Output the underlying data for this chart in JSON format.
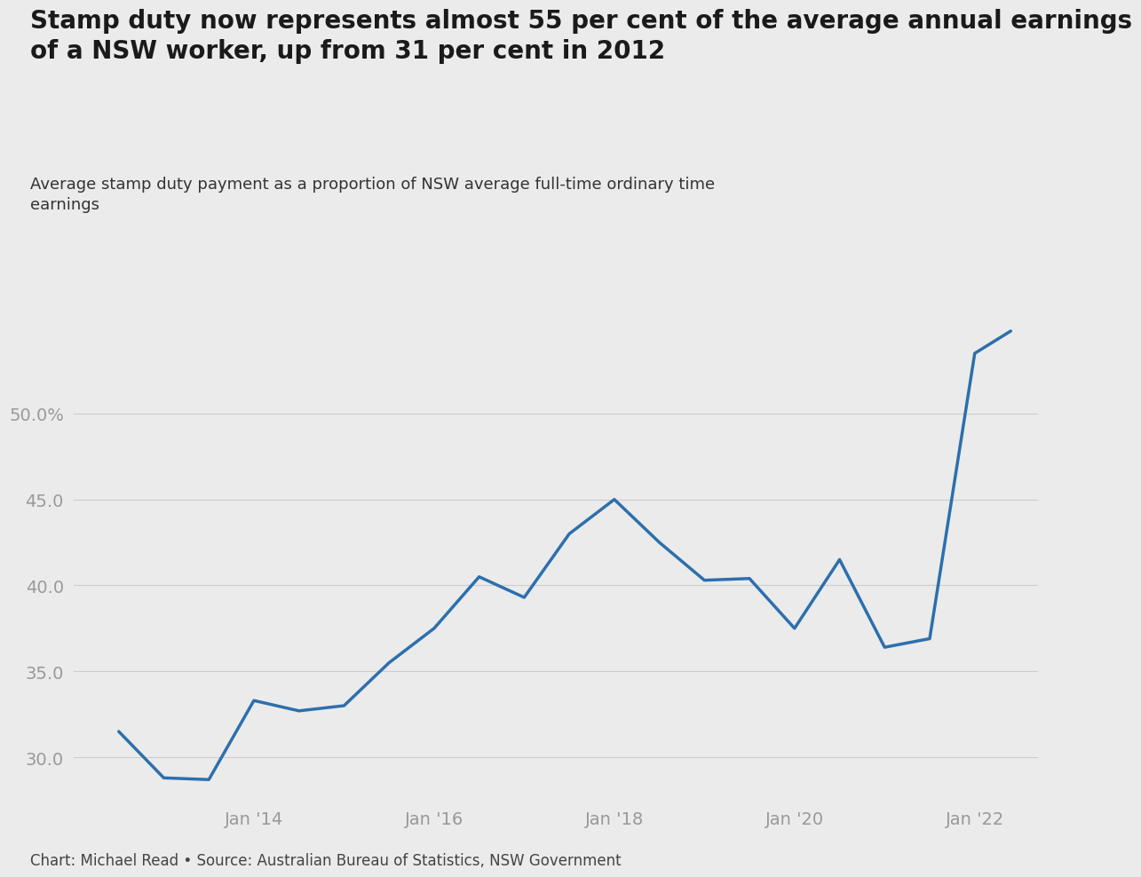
{
  "title": "Stamp duty now represents almost 55 per cent of the average annual earnings\nof a NSW worker, up from 31 per cent in 2012",
  "subtitle": "Average stamp duty payment as a proportion of NSW average full-time ordinary time\nearnings",
  "footer": "Chart: Michael Read • Source: Australian Bureau of Statistics, NSW Government",
  "line_color": "#2c6fad",
  "background_color": "#ebebeb",
  "x_data": [
    2012.5,
    2013.0,
    2013.5,
    2014.0,
    2014.5,
    2015.0,
    2015.5,
    2016.0,
    2016.5,
    2017.0,
    2017.5,
    2018.0,
    2018.5,
    2019.0,
    2019.5,
    2020.0,
    2020.5,
    2021.0,
    2021.5,
    2022.0,
    2022.4
  ],
  "y_data": [
    31.5,
    28.8,
    28.7,
    33.3,
    32.7,
    33.0,
    35.5,
    37.5,
    40.5,
    39.3,
    43.0,
    45.0,
    42.5,
    40.3,
    40.4,
    37.5,
    41.5,
    36.4,
    36.9,
    53.5,
    54.8
  ],
  "yticks": [
    30.0,
    35.0,
    40.0,
    45.0,
    50.0
  ],
  "ytick_labels": [
    "30.0",
    "35.0",
    "40.0",
    "45.0",
    "50.0%"
  ],
  "xticks": [
    2014,
    2016,
    2018,
    2020,
    2022
  ],
  "xtick_labels": [
    "Jan '14",
    "Jan '16",
    "Jan '18",
    "Jan '20",
    "Jan '22"
  ],
  "ylim": [
    27.5,
    57
  ],
  "xlim": [
    2012.0,
    2022.7
  ],
  "title_fontsize": 20,
  "subtitle_fontsize": 13,
  "tick_fontsize": 14,
  "footer_fontsize": 12,
  "line_width": 2.5
}
